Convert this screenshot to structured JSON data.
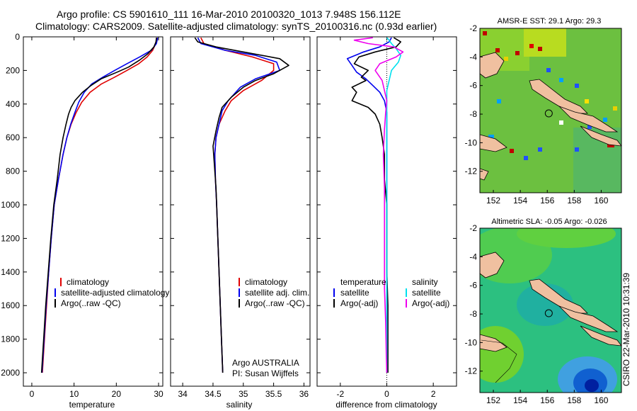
{
  "header": {
    "line1": "Argo profile: CS 5901610_111 16-Mar-2010 20100320_1013 7.948S 156.112E",
    "line2": "Climatology: CARS2009. Satellite-adjusted climatology: synTS_20100316.nc (0.93d earlier)"
  },
  "stamp": "CSIRO 22-Mar-2010 10:31:39",
  "colors": {
    "red": "#e00000",
    "blue": "#0000ee",
    "black": "#000000",
    "cyan": "#00e0ee",
    "magenta": "#ee00ee"
  },
  "chart_data": [
    {
      "type": "line",
      "id": "temperature",
      "xlabel": "temperature",
      "ylabel": "",
      "xlim": [
        -2,
        31
      ],
      "ylim": [
        2080,
        0
      ],
      "xticks": [
        0,
        10,
        20,
        30
      ],
      "yticks": [
        0,
        200,
        400,
        600,
        800,
        1000,
        1200,
        1400,
        1600,
        1800,
        2000
      ],
      "legend": [
        "climatology",
        "satellite-adjusted climatology",
        "Argo(..raw -QC)"
      ],
      "series": [
        {
          "name": "climatology",
          "color": "red",
          "points": [
            [
              29.6,
              5
            ],
            [
              29.3,
              40
            ],
            [
              28.6,
              80
            ],
            [
              27.3,
              120
            ],
            [
              25.3,
              160
            ],
            [
              22.5,
              200
            ],
            [
              19.6,
              240
            ],
            [
              16.5,
              280
            ],
            [
              13.8,
              330
            ],
            [
              11.8,
              390
            ],
            [
              10.5,
              450
            ],
            [
              9.3,
              520
            ],
            [
              8.3,
              600
            ],
            [
              7.4,
              700
            ],
            [
              6.3,
              850
            ],
            [
              5.3,
              1000
            ],
            [
              4.6,
              1200
            ],
            [
              4.0,
              1400
            ],
            [
              3.5,
              1600
            ],
            [
              3.0,
              1800
            ],
            [
              2.5,
              2000
            ]
          ]
        },
        {
          "name": "satellite-adjusted climatology",
          "color": "blue",
          "points": [
            [
              29.8,
              5
            ],
            [
              29.5,
              40
            ],
            [
              28.3,
              80
            ],
            [
              25.5,
              120
            ],
            [
              22.5,
              160
            ],
            [
              19.6,
              200
            ],
            [
              16.8,
              240
            ],
            [
              14.2,
              280
            ],
            [
              12.4,
              330
            ],
            [
              11.1,
              390
            ],
            [
              10.2,
              450
            ],
            [
              9.2,
              520
            ],
            [
              8.3,
              600
            ],
            [
              7.4,
              700
            ],
            [
              6.3,
              850
            ],
            [
              5.3,
              1000
            ],
            [
              4.6,
              1200
            ],
            [
              4.0,
              1400
            ],
            [
              3.4,
              1600
            ],
            [
              2.9,
              1800
            ],
            [
              2.4,
              2000
            ]
          ]
        },
        {
          "name": "Argo(..raw -QC)",
          "color": "black",
          "points": [
            [
              29.5,
              5
            ],
            [
              29.4,
              30
            ],
            [
              28.9,
              60
            ],
            [
              27.5,
              100
            ],
            [
              25.4,
              140
            ],
            [
              22.9,
              180
            ],
            [
              20.2,
              210
            ],
            [
              16.4,
              250
            ],
            [
              14.0,
              290
            ],
            [
              12.0,
              330
            ],
            [
              10.2,
              380
            ],
            [
              9.3,
              420
            ],
            [
              8.7,
              460
            ],
            [
              8.1,
              520
            ],
            [
              7.4,
              600
            ],
            [
              6.7,
              700
            ],
            [
              6.0,
              850
            ],
            [
              5.2,
              1000
            ],
            [
              4.5,
              1200
            ],
            [
              3.9,
              1400
            ],
            [
              3.3,
              1600
            ],
            [
              2.8,
              1800
            ],
            [
              2.3,
              2000
            ]
          ]
        }
      ]
    },
    {
      "type": "line",
      "id": "salinity",
      "xlabel": "salinity",
      "xlim": [
        33.8,
        36.1
      ],
      "ylim": [
        2080,
        0
      ],
      "xticks": [
        34,
        34.5,
        35,
        35.5,
        36
      ],
      "legend": [
        "climatology",
        "satellite adj. clim.",
        "Argo(..raw -QC)"
      ],
      "annotation": [
        "Argo AUSTRALIA",
        "PI: Susan Wijffels"
      ],
      "series": [
        {
          "name": "climatology",
          "color": "red",
          "points": [
            [
              34.3,
              5
            ],
            [
              34.35,
              40
            ],
            [
              34.7,
              80
            ],
            [
              35.15,
              120
            ],
            [
              35.5,
              160
            ],
            [
              35.5,
              200
            ],
            [
              35.3,
              260
            ],
            [
              35.0,
              320
            ],
            [
              34.8,
              380
            ],
            [
              34.7,
              440
            ],
            [
              34.6,
              520
            ],
            [
              34.55,
              600
            ],
            [
              34.53,
              700
            ],
            [
              34.54,
              850
            ],
            [
              34.56,
              1000
            ],
            [
              34.58,
              1200
            ],
            [
              34.6,
              1400
            ],
            [
              34.62,
              1600
            ],
            [
              34.64,
              1800
            ],
            [
              34.66,
              2000
            ]
          ]
        },
        {
          "name": "satellite adj. clim.",
          "color": "blue",
          "points": [
            [
              34.25,
              5
            ],
            [
              34.3,
              40
            ],
            [
              34.7,
              80
            ],
            [
              35.2,
              110
            ],
            [
              35.55,
              150
            ],
            [
              35.6,
              200
            ],
            [
              35.2,
              250
            ],
            [
              34.95,
              300
            ],
            [
              34.75,
              380
            ],
            [
              34.65,
              440
            ],
            [
              34.6,
              520
            ],
            [
              34.55,
              600
            ],
            [
              34.53,
              700
            ],
            [
              34.54,
              850
            ],
            [
              34.56,
              1000
            ],
            [
              34.58,
              1200
            ],
            [
              34.6,
              1400
            ],
            [
              34.62,
              1600
            ],
            [
              34.64,
              1800
            ],
            [
              34.66,
              2000
            ]
          ]
        },
        {
          "name": "Argo(..raw -QC)",
          "color": "black",
          "points": [
            [
              34.2,
              5
            ],
            [
              34.25,
              30
            ],
            [
              34.55,
              60
            ],
            [
              35.0,
              90
            ],
            [
              35.6,
              130
            ],
            [
              35.75,
              170
            ],
            [
              35.5,
              220
            ],
            [
              35.2,
              260
            ],
            [
              35.0,
              300
            ],
            [
              34.8,
              360
            ],
            [
              34.65,
              420
            ],
            [
              34.6,
              480
            ],
            [
              34.55,
              560
            ],
            [
              34.5,
              650
            ],
            [
              34.52,
              750
            ],
            [
              34.55,
              900
            ],
            [
              34.56,
              1000
            ],
            [
              34.58,
              1200
            ],
            [
              34.6,
              1400
            ],
            [
              34.62,
              1600
            ],
            [
              34.64,
              1800
            ],
            [
              34.66,
              2000
            ]
          ]
        }
      ]
    },
    {
      "type": "line",
      "id": "difference",
      "xlabel": "difference from climatology",
      "xlim": [
        -3,
        3
      ],
      "ylim": [
        2080,
        0
      ],
      "xticks": [
        -2,
        0,
        2
      ],
      "legend_left": {
        "title": "temperature",
        "items": [
          "satellite",
          "Argo(-adj)"
        ]
      },
      "legend_right": {
        "title": "salinity",
        "items": [
          "satellite",
          "Argo(-adj)"
        ]
      },
      "series": [
        {
          "name": "temperature satellite",
          "color": "blue",
          "points": [
            [
              0.2,
              5
            ],
            [
              0.1,
              30
            ],
            [
              -0.3,
              60
            ],
            [
              -1.0,
              90
            ],
            [
              -1.7,
              130
            ],
            [
              -1.5,
              170
            ],
            [
              -1.3,
              210
            ],
            [
              -0.9,
              250
            ],
            [
              -0.6,
              290
            ],
            [
              -0.3,
              330
            ],
            [
              -0.1,
              380
            ],
            [
              0,
              450
            ],
            [
              0,
              600
            ],
            [
              0,
              800
            ],
            [
              0,
              1000
            ],
            [
              0,
              1200
            ],
            [
              0,
              1400
            ],
            [
              0,
              1600
            ],
            [
              0,
              1800
            ],
            [
              0,
              2000
            ]
          ]
        },
        {
          "name": "temperature Argo(-adj)",
          "color": "black",
          "points": [
            [
              0.3,
              5
            ],
            [
              0.6,
              30
            ],
            [
              0.4,
              60
            ],
            [
              -0.5,
              90
            ],
            [
              -1.2,
              120
            ],
            [
              -1.4,
              160
            ],
            [
              -0.8,
              200
            ],
            [
              -1.1,
              240
            ],
            [
              -0.9,
              260
            ],
            [
              -1.5,
              300
            ],
            [
              -1.3,
              330
            ],
            [
              -1.5,
              380
            ],
            [
              -0.8,
              420
            ],
            [
              -0.5,
              460
            ],
            [
              -0.3,
              520
            ],
            [
              -0.2,
              600
            ],
            [
              -0.1,
              700
            ],
            [
              -0.1,
              850
            ],
            [
              0,
              1000
            ],
            [
              0,
              1200
            ],
            [
              0,
              1400
            ],
            [
              0.05,
              1600
            ],
            [
              0.05,
              1800
            ],
            [
              0.05,
              2000
            ]
          ]
        },
        {
          "name": "salinity satellite",
          "color": "cyan",
          "points": [
            [
              0.0,
              5
            ],
            [
              0.1,
              20
            ],
            [
              0.2,
              40
            ],
            [
              0.4,
              70
            ],
            [
              0.6,
              110
            ],
            [
              0.5,
              150
            ],
            [
              0.2,
              200
            ],
            [
              0.1,
              260
            ],
            [
              0.0,
              320
            ],
            [
              0.0,
              400
            ],
            [
              0.0,
              600
            ],
            [
              0.0,
              800
            ],
            [
              0.0,
              1000
            ],
            [
              0.0,
              1200
            ],
            [
              0.0,
              1400
            ],
            [
              0.0,
              1600
            ],
            [
              0.0,
              1800
            ],
            [
              0.0,
              2000
            ]
          ]
        },
        {
          "name": "salinity Argo(-adj)",
          "color": "magenta",
          "points": [
            [
              -0.6,
              5
            ],
            [
              -1.4,
              20
            ],
            [
              -0.8,
              40
            ],
            [
              0.3,
              60
            ],
            [
              0.7,
              90
            ],
            [
              0.4,
              120
            ],
            [
              -0.3,
              160
            ],
            [
              -0.5,
              200
            ],
            [
              -0.2,
              260
            ],
            [
              -0.1,
              320
            ],
            [
              0.0,
              380
            ],
            [
              -0.05,
              450
            ],
            [
              -0.1,
              550
            ],
            [
              -0.15,
              700
            ],
            [
              -0.1,
              900
            ],
            [
              -0.1,
              1100
            ],
            [
              -0.1,
              1300
            ],
            [
              -0.1,
              1500
            ],
            [
              -0.05,
              1700
            ],
            [
              -0.02,
              1900
            ],
            [
              0.0,
              2000
            ]
          ]
        }
      ]
    },
    {
      "type": "heatmap",
      "id": "sst-map",
      "title": "AMSR-E SST: 29.1 Argo: 29.3",
      "xlim": [
        151,
        161.5
      ],
      "ylim": [
        -13.5,
        -2
      ],
      "xticks": [
        152,
        154,
        156,
        158,
        160
      ],
      "yticks": [
        -2,
        -4,
        -6,
        -8,
        -10,
        -12
      ],
      "marker": [
        156.11,
        -7.95
      ]
    },
    {
      "type": "heatmap",
      "id": "sla-map",
      "title": "Altimetric SLA: -0.05 Argo: -0.026",
      "xlim": [
        151,
        161.5
      ],
      "ylim": [
        -13.5,
        -2
      ],
      "xticks": [
        152,
        154,
        156,
        158,
        160
      ],
      "yticks": [
        -2,
        -4,
        -6,
        -8,
        -10,
        -12
      ],
      "marker": [
        156.11,
        -7.95
      ]
    }
  ]
}
